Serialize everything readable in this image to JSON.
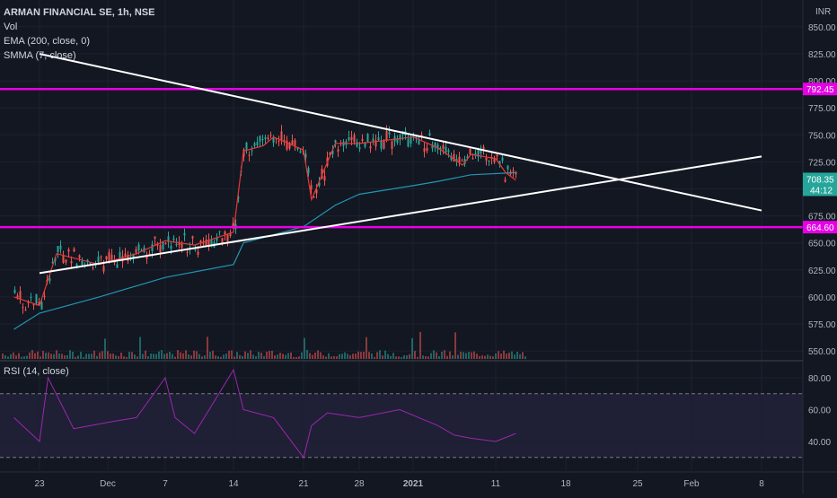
{
  "header": {
    "symbol": "ARMAN FINANCIAL SE, 1h, NSE",
    "indicators": [
      "Vol",
      "EMA (200, close, 0)",
      "SMMA (7, close)"
    ],
    "currency": "INR"
  },
  "rsi_panel": {
    "label": "RSI (14, close)"
  },
  "colors": {
    "background": "#131722",
    "up": "#26a69a",
    "down": "#ef5350",
    "ema": "#2196b3",
    "smma": "#e53935",
    "levels": "#e600e6",
    "trendlines": "#ffffff",
    "rsi": "#9c27b0",
    "price_tag": "#26a69a"
  },
  "chart_data": [
    {
      "type": "line",
      "title": "ARMAN FINANCIAL SE, 1h, NSE",
      "ylim": [
        540,
        860
      ],
      "y_ticks": [
        550,
        575,
        600,
        625,
        650,
        675,
        700,
        725,
        750,
        775,
        800,
        825,
        850
      ],
      "x_ticks": [
        "23",
        "Dec",
        "7",
        "14",
        "21",
        "28",
        "2021",
        "11",
        "18",
        "25",
        "Feb",
        "8"
      ],
      "horizontal_levels": [
        {
          "name": "resistance",
          "value": 792.45,
          "label": "792.45"
        },
        {
          "name": "support",
          "value": 664.6,
          "label": "664.60"
        }
      ],
      "current_price": {
        "value": 708.35,
        "label": "708.35",
        "countdown": "44:12"
      },
      "trendlines": [
        {
          "name": "falling",
          "points": [
            [
              "Nov 23",
              825
            ],
            [
              "Feb 8",
              680
            ]
          ]
        },
        {
          "name": "rising",
          "points": [
            [
              "Nov 23",
              622
            ],
            [
              "Feb 8",
              730
            ]
          ]
        }
      ],
      "series": [
        {
          "name": "SMMA (7, close)",
          "x": [
            "Nov 20",
            "Nov 23",
            "Nov 25",
            "Nov 30",
            "Dec 4",
            "Dec 7",
            "Dec 10",
            "Dec 14",
            "Dec 15",
            "Dec 17",
            "Dec 18",
            "Dec 21",
            "Dec 22",
            "Dec 25",
            "Dec 28",
            "Jan 1",
            "Jan 4",
            "Jan 7",
            "Jan 8",
            "Jan 11",
            "Jan 12",
            "Jan 13"
          ],
          "values": [
            600,
            592,
            640,
            630,
            640,
            652,
            648,
            660,
            735,
            740,
            748,
            736,
            690,
            742,
            742,
            748,
            738,
            722,
            732,
            728,
            715,
            708
          ]
        },
        {
          "name": "EMA (200, close, 0)",
          "x": [
            "Nov 20",
            "Nov 23",
            "Nov 30",
            "Dec 7",
            "Dec 14",
            "Dec 15",
            "Dec 21",
            "Dec 25",
            "Dec 28",
            "Jan 1",
            "Jan 4",
            "Jan 8",
            "Jan 13"
          ],
          "values": [
            570,
            585,
            600,
            618,
            630,
            650,
            665,
            685,
            695,
            703,
            707,
            713,
            715
          ]
        }
      ]
    },
    {
      "type": "line",
      "title": "RSI (14, close)",
      "ylim": [
        25,
        90
      ],
      "y_ticks": [
        40,
        60,
        80
      ],
      "bands": [
        30,
        70
      ],
      "series": [
        {
          "name": "RSI (14, close)",
          "x": [
            "Nov 20",
            "Nov 23",
            "Nov 24",
            "Nov 27",
            "Dec 1",
            "Dec 4",
            "Dec 7",
            "Dec 8",
            "Dec 10",
            "Dec 14",
            "Dec 15",
            "Dec 18",
            "Dec 21",
            "Dec 22",
            "Dec 24",
            "Dec 28",
            "Dec 31",
            "Jan 4",
            "Jan 6",
            "Jan 8",
            "Jan 11",
            "Jan 13"
          ],
          "values": [
            55,
            40,
            80,
            48,
            52,
            55,
            80,
            55,
            45,
            85,
            60,
            55,
            30,
            50,
            58,
            55,
            60,
            50,
            44,
            42,
            40,
            45
          ]
        }
      ]
    }
  ]
}
